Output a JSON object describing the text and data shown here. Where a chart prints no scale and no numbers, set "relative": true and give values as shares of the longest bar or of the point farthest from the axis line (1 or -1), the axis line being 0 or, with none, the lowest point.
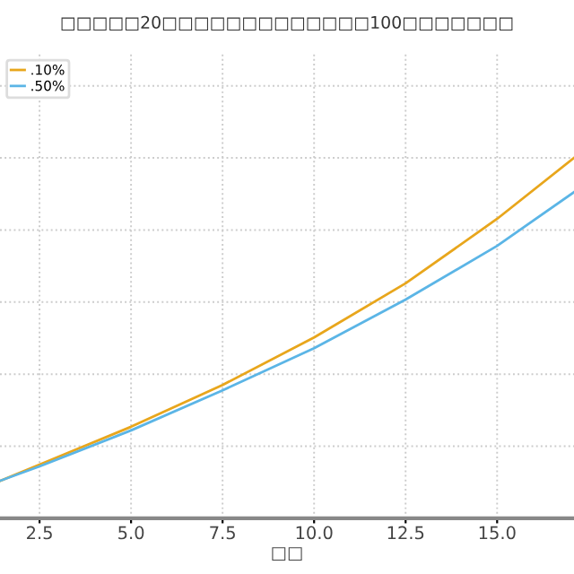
{
  "chart_data": {
    "type": "line",
    "title": "□□□□□20□□□□□□□□□□□□□100□□□□□□□",
    "xlabel": "□□",
    "relative": true,
    "x": [
      1.42,
      2.5,
      5.0,
      7.5,
      10.0,
      12.5,
      15.0,
      17.1
    ],
    "series": [
      {
        "name": ".10%",
        "color": "#e8a61c",
        "values": [
          0.104,
          0.149,
          0.254,
          0.37,
          0.502,
          0.652,
          0.831,
          1.0
        ]
      },
      {
        "name": ".50%",
        "color": "#5bb5e6",
        "values": [
          0.104,
          0.144,
          0.244,
          0.355,
          0.472,
          0.607,
          0.756,
          0.905
        ]
      }
    ],
    "xlim": [
      1.42,
      17.1
    ],
    "xticks": [
      2.5,
      {
        "value": 5,
        "label": "5.0"
      },
      7.5,
      {
        "value": 10,
        "label": "10.0"
      },
      12.5,
      {
        "value": 15,
        "label": "15.0"
      }
    ],
    "grid": true,
    "legend": "top left",
    "line_style": "solid",
    "marker": "none"
  }
}
